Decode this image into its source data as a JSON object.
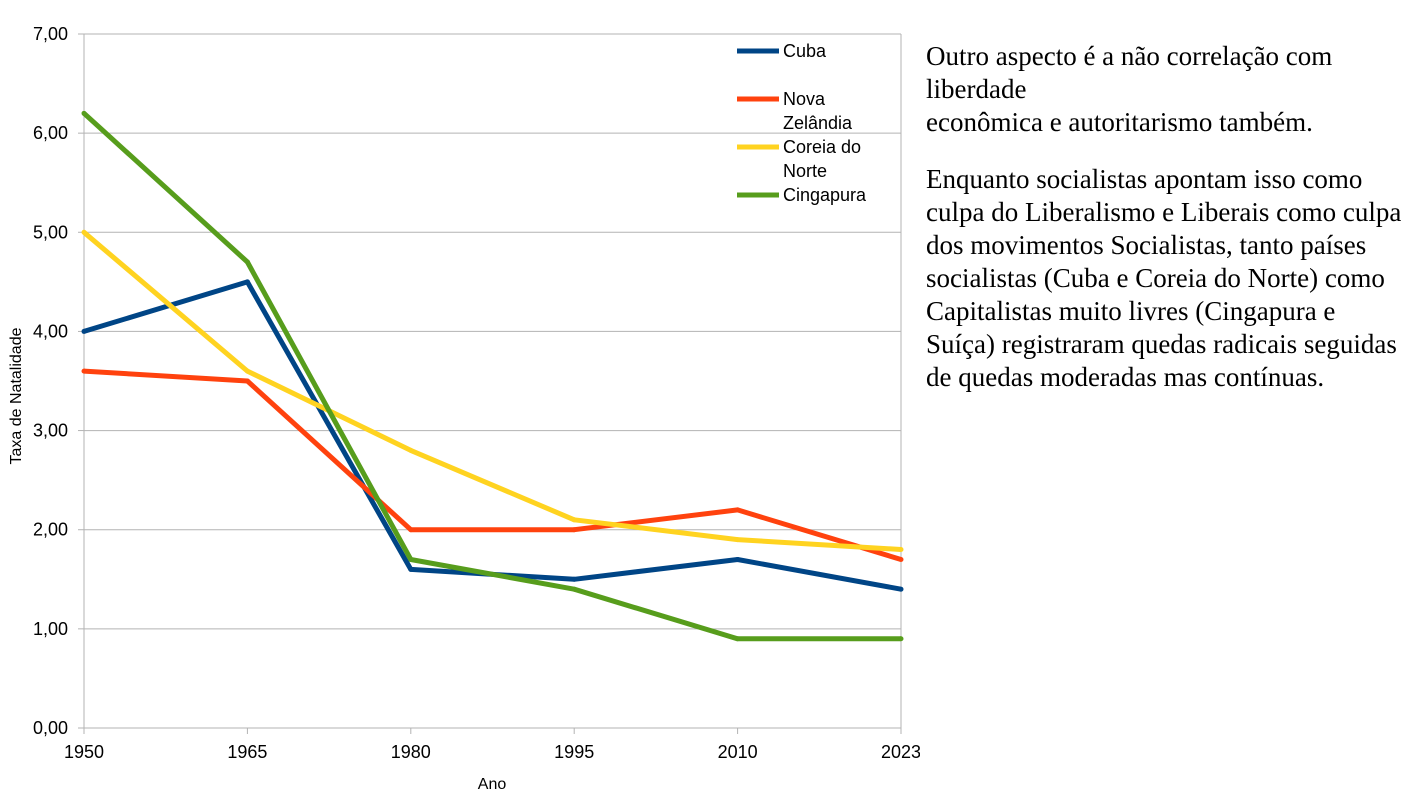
{
  "chart_data": {
    "type": "line",
    "x": [
      "1950",
      "1965",
      "1980",
      "1995",
      "2010",
      "2023"
    ],
    "xlabel": "Ano",
    "ylabel": "Taxa de Natalidade",
    "ylim": [
      0,
      7
    ],
    "yticks": [
      "0,00",
      "1,00",
      "2,00",
      "3,00",
      "4,00",
      "5,00",
      "6,00",
      "7,00"
    ],
    "grid": "horizontal",
    "legend_position": "top-right",
    "series": [
      {
        "name_lines": [
          "Cuba"
        ],
        "color": "#004586",
        "values": [
          4.0,
          4.5,
          1.6,
          1.5,
          1.7,
          1.4
        ]
      },
      {
        "name_lines": [
          "Nova",
          "Zelândia"
        ],
        "color": "#ff420e",
        "values": [
          3.6,
          3.5,
          2.0,
          2.0,
          2.2,
          1.7
        ]
      },
      {
        "name_lines": [
          "Coreia do",
          "Norte"
        ],
        "color": "#ffd320",
        "values": [
          5.0,
          3.6,
          2.8,
          2.1,
          1.9,
          1.8
        ]
      },
      {
        "name_lines": [
          "Cingapura"
        ],
        "color": "#579d1c",
        "values": [
          6.2,
          4.7,
          1.7,
          1.4,
          0.9,
          0.9
        ]
      }
    ]
  },
  "commentary": {
    "paragraph1_lines": [
      "Outro aspecto é a não correlação com",
      "liberdade",
      "econômica e autoritarismo também."
    ],
    "paragraph2": "Enquanto socialistas apontam isso como culpa do Liberalismo e Liberais como culpa dos movimentos Socialistas, tanto países socialistas (Cuba e Coreia do Norte) como Capitalistas muito livres (Cingapura e Suíça) registraram quedas radicais seguidas de quedas moderadas mas contínuas."
  }
}
